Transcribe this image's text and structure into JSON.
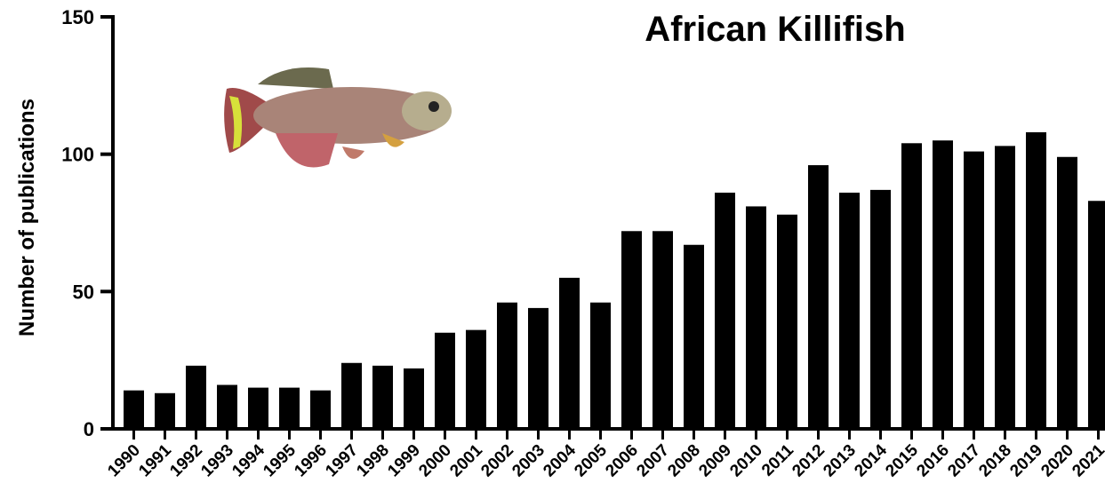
{
  "chart_data": {
    "type": "bar",
    "title": "African Killifish",
    "y_label": "Number of publications",
    "categories": [
      "1990",
      "1991",
      "1992",
      "1993",
      "1994",
      "1995",
      "1996",
      "1997",
      "1998",
      "1999",
      "2000",
      "2001",
      "2002",
      "2003",
      "2004",
      "2005",
      "2006",
      "2007",
      "2008",
      "2009",
      "2010",
      "2011",
      "2012",
      "2013",
      "2014",
      "2015",
      "2016",
      "2017",
      "2018",
      "2019",
      "2020",
      "2021"
    ],
    "values": [
      14,
      13,
      23,
      16,
      15,
      15,
      14,
      24,
      23,
      22,
      35,
      36,
      46,
      44,
      55,
      46,
      72,
      72,
      67,
      86,
      81,
      78,
      96,
      86,
      87,
      104,
      105,
      101,
      103,
      108,
      99,
      83
    ],
    "color": "#000000",
    "ylim": [
      0,
      150
    ],
    "yticks": [
      0,
      50,
      100,
      150
    ],
    "grid": false
  }
}
